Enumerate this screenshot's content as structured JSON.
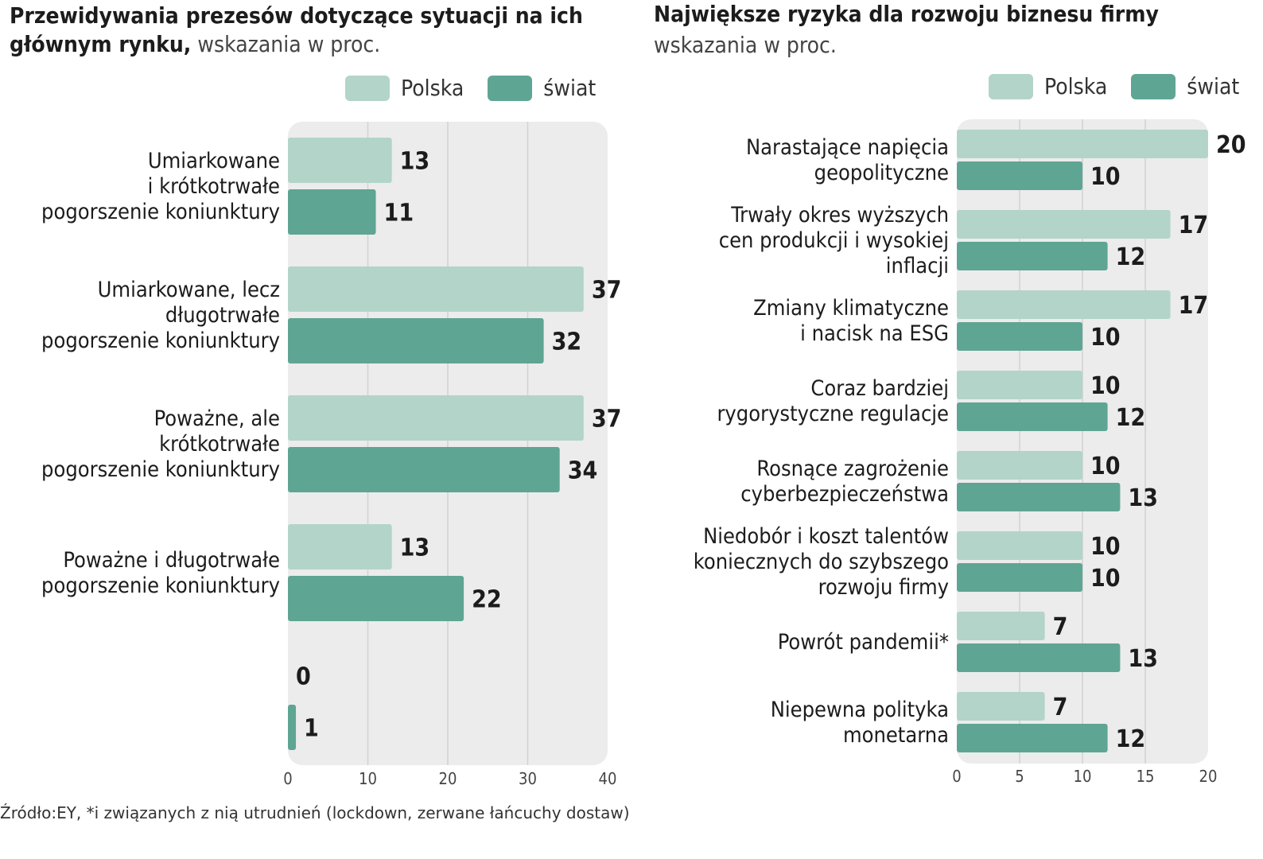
{
  "colors": {
    "polska": "#b3d4c9",
    "swiat": "#5fa593",
    "panel_bg": "#ececec",
    "grid": "#d2d2d2"
  },
  "left": {
    "title_bold_1": "Przewidywania prezesów  dotyczące sytuacji na ich",
    "title_bold_2": "głównym rynku,",
    "title_light": " wskazania w proc.",
    "legend": {
      "polska": "Polska",
      "swiat": "świat"
    }
  },
  "right": {
    "title_bold": "Największe ryzyka dla rozwoju biznesu firmy",
    "subtitle": "wskazania w proc.",
    "legend": {
      "polska": "Polska",
      "swiat": "świat"
    }
  },
  "source": "Źródło:EY, *i związanych z nią utrudnień (lockdown, zerwane łańcuchy dostaw)",
  "chart_data": [
    {
      "type": "bar",
      "orientation": "horizontal",
      "title": "Przewidywania prezesów  dotyczące sytuacji na ich głównym rynku, wskazania w proc.",
      "categories": [
        [
          "Umiarkowane",
          "i krótkotrwałe",
          "pogorszenie koniunktury"
        ],
        [
          "Umiarkowane, lecz",
          "długotrwałe",
          "pogorszenie koniunktury"
        ],
        [
          "Poważne, ale",
          "krótkotrwałe",
          "pogorszenie koniunktury"
        ],
        [
          "Poważne i długotrwałe",
          "pogorszenie koniunktury"
        ],
        []
      ],
      "series": [
        {
          "name": "Polska",
          "values": [
            13,
            37,
            37,
            13,
            0
          ]
        },
        {
          "name": "świat",
          "values": [
            11,
            32,
            34,
            22,
            1
          ]
        }
      ],
      "xlim": [
        0,
        40
      ],
      "xticks": [
        0,
        10,
        20,
        30,
        40
      ],
      "grid": true,
      "legend": "top-right"
    },
    {
      "type": "bar",
      "orientation": "horizontal",
      "title": "Największe ryzyka dla rozwoju biznesu firmy wskazania w proc.",
      "categories": [
        [
          "Narastające napięcia",
          "geopolityczne"
        ],
        [
          "Trwały okres wyższych",
          "cen produkcji i wysokiej",
          "inflacji"
        ],
        [
          "Zmiany klimatyczne",
          "i nacisk na ESG"
        ],
        [
          "Coraz bardziej",
          "rygorystyczne regulacje"
        ],
        [
          "Rosnące zagrożenie",
          "cyberbezpieczeństwa"
        ],
        [
          "Niedobór i koszt talentów",
          "koniecznych do szybszego",
          "rozwoju firmy"
        ],
        [
          "Powrót pandemii*"
        ],
        [
          "Niepewna polityka",
          "monetarna"
        ]
      ],
      "series": [
        {
          "name": "Polska",
          "values": [
            20,
            17,
            17,
            10,
            10,
            10,
            7,
            7
          ]
        },
        {
          "name": "świat",
          "values": [
            10,
            12,
            10,
            12,
            13,
            10,
            13,
            12
          ]
        }
      ],
      "xlim": [
        0,
        20
      ],
      "xticks": [
        0,
        5,
        10,
        15,
        20
      ],
      "grid": true,
      "legend": "top-right"
    }
  ]
}
